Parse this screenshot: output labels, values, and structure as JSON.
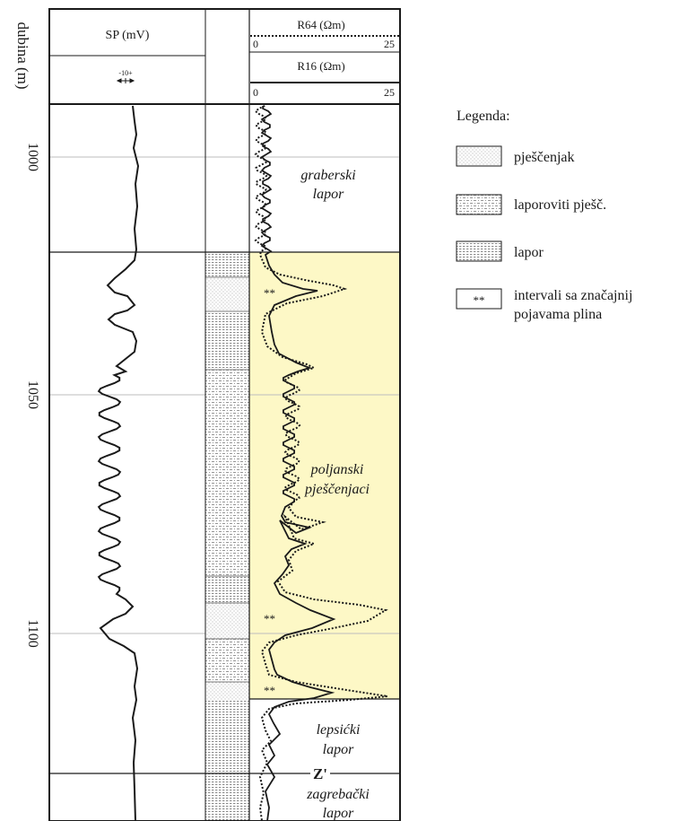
{
  "header": {
    "depth_label": "dubina (m)",
    "sp_label": "SP (mV)",
    "sp_scale": "-10+",
    "r64_label": "R64 (Ωm)",
    "r64_min": "0",
    "r64_max": "25",
    "r16_label": "R16 (Ωm)",
    "r16_min": "0",
    "r16_max": "25"
  },
  "depth_ticks": [
    "1000",
    "1050",
    "1100"
  ],
  "formations": {
    "graberski": [
      "graberski",
      "lapor"
    ],
    "poljanski": [
      "poljanski",
      "pješčenjaci"
    ],
    "lepsicki": [
      "lepsićki",
      "lapor"
    ],
    "marker": "Z'",
    "zagrebacki": [
      "zagrebački",
      "lapor"
    ]
  },
  "gas_marker": "**",
  "legend": {
    "title": "Legenda:",
    "items": [
      {
        "key": "pjescenjak",
        "label": "pješčenjak"
      },
      {
        "key": "laporoviti",
        "label": "laporoviti pješč."
      },
      {
        "key": "lapor",
        "label": "lapor"
      },
      {
        "key": "gas",
        "label": "intervali sa značajnij",
        "label2": "pojavama plina",
        "symbol": "**"
      }
    ]
  },
  "colors": {
    "sand_interval": "#fdf8c6",
    "line": "#1a1a1a",
    "grid": "#bdbdbd"
  }
}
